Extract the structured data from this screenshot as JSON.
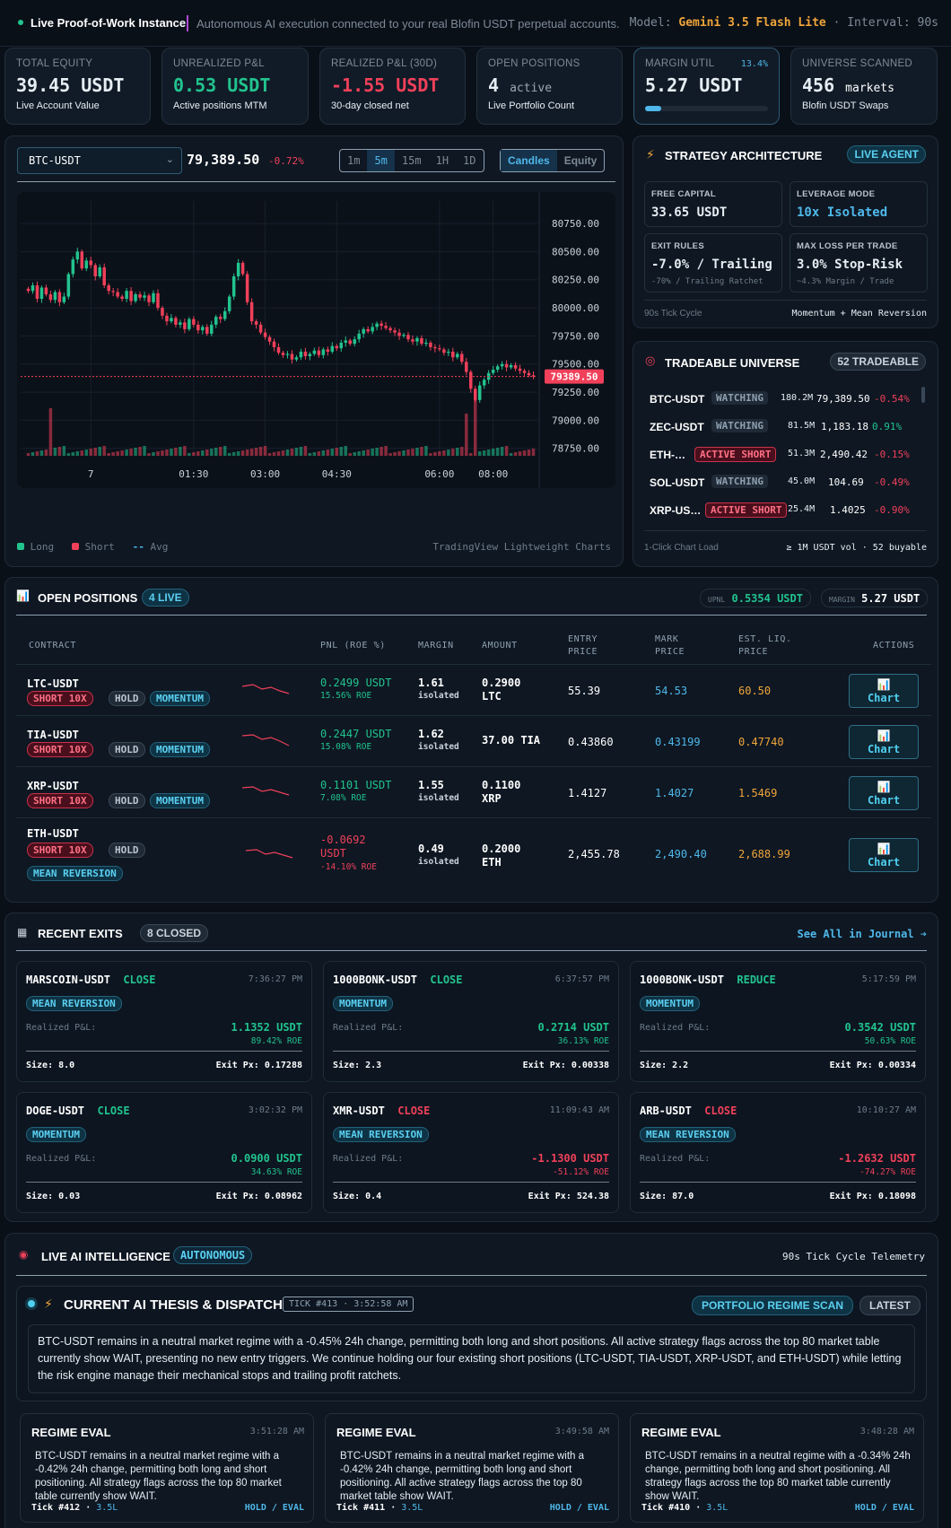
{
  "topbar": {
    "live_label": "Live Proof-of-Work Instance",
    "description": "Autonomous AI execution connected to your real Blofin USDT perpetual accounts.",
    "model_label": "Model:",
    "model_value": "Gemini 3.5 Flash Lite",
    "interval_label": "Interval:",
    "interval_value": "90s"
  },
  "stats": [
    {
      "label": "TOTAL EQUITY",
      "value": "39.45 USDT",
      "sub": "Live Account Value",
      "color": "#ffffff"
    },
    {
      "label": "UNREALIZED P&L",
      "value": "0.53 USDT",
      "sub": "Active positions MTM",
      "color": "#22c38e"
    },
    {
      "label": "REALIZED P&L (30D)",
      "value": "-1.55 USDT",
      "sub": "30-day closed net",
      "color": "#f0405a"
    },
    {
      "label": "OPEN POSITIONS",
      "value": "4",
      "value_suffix": "active",
      "sub": "Live Portfolio Count",
      "color": "#ffffff"
    },
    {
      "label": "MARGIN UTIL",
      "value": "5.27 USDT",
      "badge": "13.4%",
      "progress": 0.134,
      "color": "#ffffff"
    },
    {
      "label": "UNIVERSE SCANNED",
      "value": "456",
      "value_suffix": "markets",
      "sub": "Blofin USDT Swaps",
      "color": "#ffffff"
    }
  ],
  "chart": {
    "symbol": "BTC-USDT",
    "price": "79,389.50",
    "change": "-0.72%",
    "timeframes": [
      "1m",
      "5m",
      "15m",
      "1H",
      "1D"
    ],
    "active_timeframe": "5m",
    "modes": [
      "Candles",
      "Equity"
    ],
    "active_mode": "Candles",
    "price_tag": "79389.50",
    "legend": {
      "long": "Long",
      "short": "Short",
      "avg": "Avg"
    },
    "credit": "TradingView Lightweight Charts",
    "colors": {
      "up": "#22c38e",
      "down": "#f0405a"
    }
  },
  "chart_data": {
    "type": "candlestick",
    "x_ticks": [
      "7",
      "01:30",
      "03:00",
      "04:30",
      "06:00",
      "08:00"
    ],
    "y_ticks": [
      80750,
      80500,
      80250,
      80000,
      79750,
      79500,
      79250,
      79000,
      78750
    ],
    "ylim": [
      78700,
      80950
    ],
    "last_price": 79389.5,
    "closes": [
      80150,
      80200,
      80080,
      80180,
      80120,
      80070,
      80140,
      80050,
      80100,
      80300,
      80430,
      80500,
      80350,
      80420,
      80380,
      80280,
      80360,
      80200,
      80150,
      80140,
      80100,
      80080,
      80150,
      80060,
      80120,
      80090,
      80110,
      80050,
      80130,
      80000,
      79930,
      79880,
      79910,
      79850,
      79870,
      79810,
      79900,
      79850,
      79800,
      79830,
      79770,
      79850,
      79920,
      79900,
      79970,
      80100,
      80280,
      80400,
      80300,
      80050,
      79880,
      79850,
      79780,
      79740,
      79700,
      79650,
      79600,
      79580,
      79590,
      79540,
      79560,
      79610,
      79570,
      79590,
      79620,
      79580,
      79630,
      79610,
      79660,
      79640,
      79690,
      79710,
      79680,
      79720,
      79770,
      79810,
      79790,
      79830,
      79860,
      79840,
      79820,
      79800,
      79780,
      79750,
      79760,
      79720,
      79700,
      79730,
      79680,
      79690,
      79650,
      79640,
      79630,
      79600,
      79610,
      79560,
      79590,
      79520,
      79430,
      79280,
      79180,
      79310,
      79360,
      79420,
      79450,
      79480,
      79500,
      79470,
      79490,
      79460,
      79440,
      79420,
      79400,
      79389.5
    ]
  },
  "strategy": {
    "title": "STRATEGY ARCHITECTURE",
    "badge": "LIVE AGENT",
    "cells": [
      {
        "label": "FREE CAPITAL",
        "value": "33.65 USDT",
        "color": "#ffffff"
      },
      {
        "label": "LEVERAGE MODE",
        "value": "10x Isolated",
        "color": "#4fb8ea"
      },
      {
        "label": "EXIT RULES",
        "value": "-7.0% / Trailing",
        "sub": "-70% / Trailing Ratchet",
        "color": "#ffffff"
      },
      {
        "label": "MAX LOSS PER TRADE",
        "value": "3.0% Stop-Risk",
        "sub": "~4.3% Margin / Trade",
        "color": "#ffffff"
      }
    ],
    "footer_left": "90s Tick Cycle",
    "footer_right": "Momentum + Mean Reversion"
  },
  "universe": {
    "title": "TRADEABLE UNIVERSE",
    "badge": "52 TRADEABLE",
    "rows": [
      {
        "symbol": "BTC-USDT",
        "status": "WATCHING",
        "vol": "180.2M",
        "price": "79,389.50",
        "change": "-0.54%",
        "dir": "down"
      },
      {
        "symbol": "ZEC-USDT",
        "status": "WATCHING",
        "vol": "81.5M",
        "price": "1,183.18",
        "change": "0.91%",
        "dir": "up"
      },
      {
        "symbol": "ETH-…",
        "status": "ACTIVE SHORT",
        "vol": "51.3M",
        "price": "2,490.42",
        "change": "-0.15%",
        "dir": "down"
      },
      {
        "symbol": "SOL-USDT",
        "status": "WATCHING",
        "vol": "45.0M",
        "price": "104.69",
        "change": "-0.49%",
        "dir": "down"
      },
      {
        "symbol": "XRP-US…",
        "status": "ACTIVE SHORT",
        "vol": "25.4M",
        "price": "1.4025",
        "change": "-0.90%",
        "dir": "down"
      }
    ],
    "footer_left": "1-Click Chart Load",
    "footer_right": "≥ 1M USDT vol · 52 buyable"
  },
  "positions": {
    "title": "OPEN POSITIONS",
    "badge": "4 LIVE",
    "upnl_label": "UPNL",
    "upnl_value": "0.5354 USDT",
    "margin_label": "MARGIN",
    "margin_value": "5.27 USDT",
    "headers": {
      "contract": "CONTRACT",
      "pnl": "PNL (ROE %)",
      "margin": "MARGIN",
      "amount": "AMOUNT",
      "entry": "ENTRY\nPRICE",
      "mark": "MARK\nPRICE",
      "liq": "EST. LIQ.\nPRICE",
      "actions": "ACTIONS"
    },
    "isolated": "isolated",
    "chart_btn": "Chart",
    "rows": [
      {
        "symbol": "LTC-USDT",
        "side": "SHORT 10X",
        "hold": "HOLD",
        "strategy": "MOMENTUM",
        "pnl": "0.2499 USDT",
        "roe": "15.56% ROE",
        "margin": "1.61",
        "amount": "0.2900",
        "amount_unit": "LTC",
        "entry": "55.39",
        "mark": "54.53",
        "liq": "60.50",
        "dir": "up"
      },
      {
        "symbol": "TIA-USDT",
        "side": "SHORT 10X",
        "hold": "HOLD",
        "strategy": "MOMENTUM",
        "pnl": "0.2447 USDT",
        "roe": "15.08% ROE",
        "margin": "1.62",
        "amount": "37.00 TIA",
        "amount_unit": "",
        "entry": "0.43860",
        "mark": "0.43199",
        "liq": "0.47740",
        "dir": "up"
      },
      {
        "symbol": "XRP-USDT",
        "side": "SHORT 10X",
        "hold": "HOLD",
        "strategy": "MOMENTUM",
        "pnl": "0.1101 USDT",
        "roe": "7.08% ROE",
        "margin": "1.55",
        "amount": "0.1100",
        "amount_unit": "XRP",
        "entry": "1.4127",
        "mark": "1.4027",
        "liq": "1.5469",
        "dir": "up"
      },
      {
        "symbol": "ETH-USDT",
        "side": "SHORT 10X",
        "hold": "HOLD",
        "strategy": "MEAN REVERSION",
        "pnl": "-0.0692",
        "pnl_unit": "USDT",
        "roe": "-14.10% ROE",
        "margin": "0.49",
        "amount": "0.2000",
        "amount_unit": "ETH",
        "entry": "2,455.78",
        "mark": "2,490.40",
        "liq": "2,688.99",
        "dir": "down"
      }
    ]
  },
  "exits": {
    "title": "RECENT EXITS",
    "badge": "8 CLOSED",
    "link": "See All in Journal ➔",
    "realized_label": "Realized P&L:",
    "size_label": "Size:",
    "exit_label": "Exit Px:",
    "cards": [
      {
        "symbol": "MARSCOIN-USDT",
        "action": "CLOSE",
        "time": "7:36:27 PM",
        "strategy": "MEAN REVERSION",
        "pnl": "1.1352 USDT",
        "roe": "89.42% ROE",
        "size": "8.0",
        "exit": "0.17288",
        "dir": "up"
      },
      {
        "symbol": "1000BONK-USDT",
        "action": "CLOSE",
        "time": "6:37:57 PM",
        "strategy": "MOMENTUM",
        "pnl": "0.2714 USDT",
        "roe": "36.13% ROE",
        "size": "2.3",
        "exit": "0.00338",
        "dir": "up"
      },
      {
        "symbol": "1000BONK-USDT",
        "action": "REDUCE",
        "time": "5:17:59 PM",
        "strategy": "MOMENTUM",
        "pnl": "0.3542 USDT",
        "roe": "50.63% ROE",
        "size": "2.2",
        "exit": "0.00334",
        "dir": "up"
      },
      {
        "symbol": "DOGE-USDT",
        "action": "CLOSE",
        "time": "3:02:32 PM",
        "strategy": "MOMENTUM",
        "pnl": "0.0900 USDT",
        "roe": "34.63% ROE",
        "size": "0.03",
        "exit": "0.08962",
        "dir": "up"
      },
      {
        "symbol": "XMR-USDT",
        "action": "CLOSE",
        "time": "11:09:43 AM",
        "strategy": "MEAN REVERSION",
        "pnl": "-1.1300 USDT",
        "roe": "-51.12% ROE",
        "size": "0.4",
        "exit": "524.38",
        "dir": "down"
      },
      {
        "symbol": "ARB-USDT",
        "action": "CLOSE",
        "time": "10:10:27 AM",
        "strategy": "MEAN REVERSION",
        "pnl": "-1.2632 USDT",
        "roe": "-74.27% ROE",
        "size": "87.0",
        "exit": "0.18098",
        "dir": "down"
      }
    ]
  },
  "ai": {
    "title": "LIVE AI INTELLIGENCE",
    "badge": "AUTONOMOUS",
    "telemetry": "90s Tick Cycle Telemetry",
    "thesis_title": "CURRENT AI THESIS & DISPATCH",
    "thesis_tick": "TICK #413 · 3:52:58 AM",
    "regime_btn": "PORTFOLIO REGIME SCAN",
    "latest_btn": "LATEST",
    "thesis_text": "BTC-USDT remains in a neutral market regime with a -0.45% 24h change, permitting both long and short positions. All active strategy flags across the top 80 market table currently show WAIT, presenting no new entry triggers. We continue holding our four existing short positions (LTC-USDT, TIA-USDT, XRP-USDT, and ETH-USDT) while letting the risk engine manage their mechanical stops and trailing profit ratchets.",
    "cards": [
      {
        "title": "REGIME EVAL",
        "time": "3:51:28 AM",
        "text": "BTC-USDT remains in a neutral market regime with a -0.42% 24h change, permitting both long and short positioning. All strategy flags across the top 80 market table currently show WAIT.",
        "tick": "Tick #412",
        "model": "3.5L",
        "action": "HOLD / EVAL"
      },
      {
        "title": "REGIME EVAL",
        "time": "3:49:58 AM",
        "text": "BTC-USDT remains in a neutral market regime with a -0.42% 24h change, permitting both long and short positioning. All active strategy flags across the top 80 market table show WAIT.",
        "tick": "Tick #411",
        "model": "3.5L",
        "action": "HOLD / EVAL"
      },
      {
        "title": "REGIME EVAL",
        "time": "3:48:28 AM",
        "text": "BTC-USDT remains in a neutral regime with a -0.34% 24h change, permitting both long and short positioning. All strategy flags across the top 80 market table currently show WAIT.",
        "tick": "Tick #410",
        "model": "3.5L",
        "action": "HOLD / EVAL"
      }
    ]
  }
}
